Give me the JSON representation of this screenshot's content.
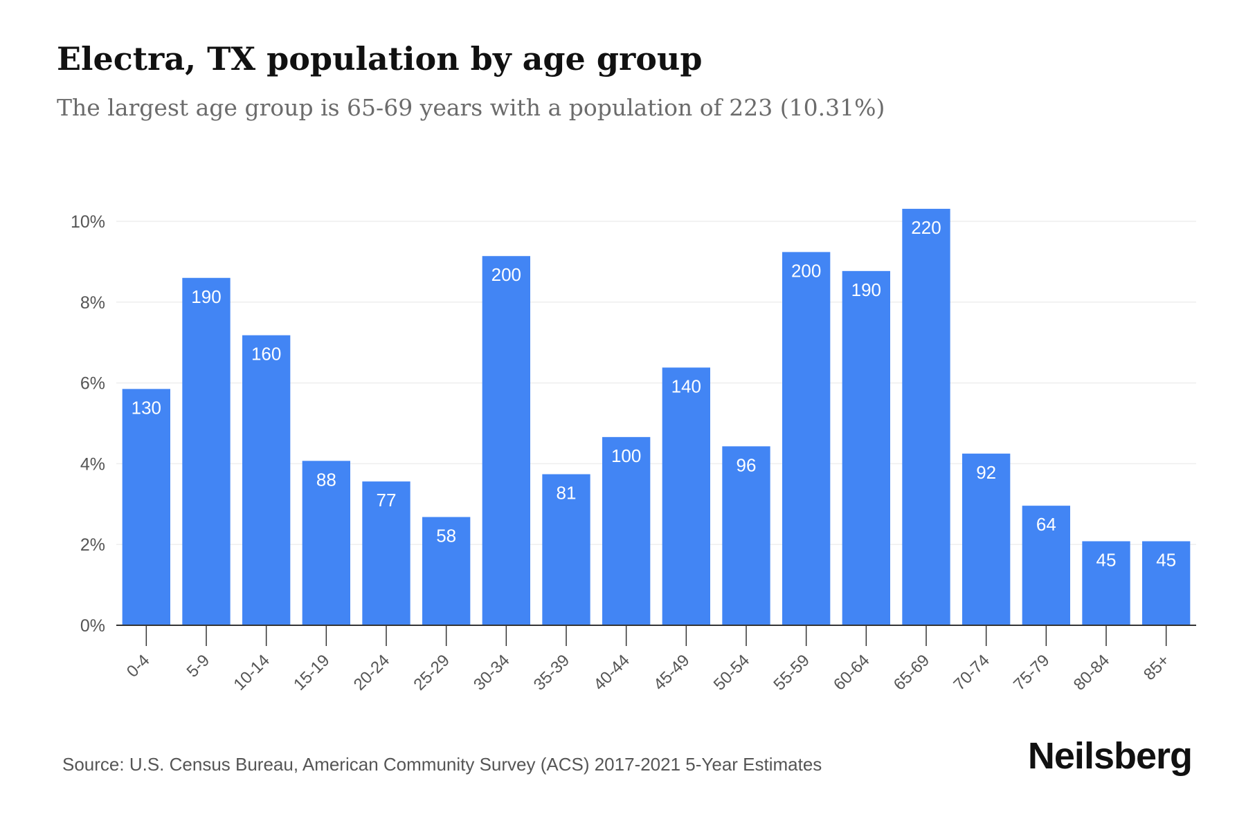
{
  "header": {
    "title": "Electra, TX population by age group",
    "subtitle": "The largest age group is 65-69 years with a population of 223 (10.31%)"
  },
  "footer": {
    "source": "Source: U.S. Census Bureau, American Community Survey (ACS) 2017-2021 5-Year Estimates",
    "brand": "Neilsberg"
  },
  "colors": {
    "bar": "#4285f4",
    "bar_label": "#ffffff",
    "grid": "#eeeeee",
    "axis": "#333333",
    "tick_text": "#555555"
  },
  "chart_data": {
    "type": "bar",
    "categories": [
      "0-4",
      "5-9",
      "10-14",
      "15-19",
      "20-24",
      "25-29",
      "30-34",
      "35-39",
      "40-44",
      "45-49",
      "50-54",
      "55-59",
      "60-64",
      "65-69",
      "70-74",
      "75-79",
      "80-84",
      "85+"
    ],
    "values": [
      5.85,
      8.6,
      7.18,
      4.07,
      3.56,
      2.68,
      9.14,
      3.74,
      4.66,
      6.38,
      4.43,
      9.24,
      8.77,
      10.31,
      4.25,
      2.96,
      2.08,
      2.08
    ],
    "data_labels": [
      "130",
      "190",
      "160",
      "88",
      "77",
      "58",
      "200",
      "81",
      "100",
      "140",
      "96",
      "200",
      "190",
      "220",
      "92",
      "64",
      "45",
      "45"
    ],
    "y_ticks": [
      0,
      2,
      4,
      6,
      8,
      10
    ],
    "y_tick_labels": [
      "0%",
      "2%",
      "4%",
      "6%",
      "8%",
      "10%"
    ],
    "ylim": [
      0,
      10.31
    ],
    "grid": true,
    "xlabel": "",
    "ylabel": ""
  }
}
